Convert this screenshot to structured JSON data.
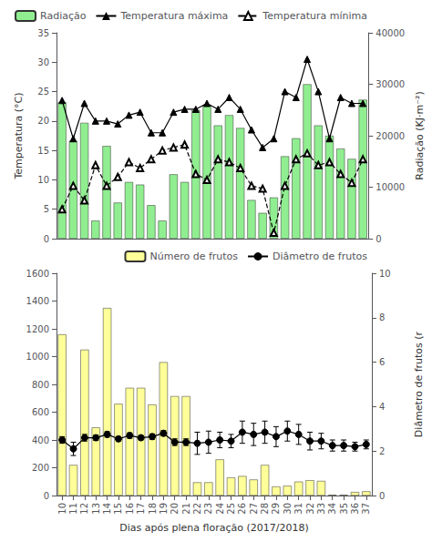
{
  "chart_data": [
    {
      "type": "bar",
      "categories": [
        "10",
        "11",
        "12",
        "13",
        "14",
        "15",
        "16",
        "17",
        "18",
        "19",
        "20",
        "21",
        "22",
        "23",
        "24",
        "25",
        "26",
        "27",
        "28",
        "29",
        "30",
        "31",
        "32",
        "33",
        "34",
        "35",
        "36",
        "37"
      ],
      "ylabel": "Temperatura (°C)",
      "y2label": "Radiação (KJ·m⁻²)",
      "ylim": [
        0,
        35
      ],
      "yticks": [
        0,
        5,
        10,
        15,
        20,
        25,
        30,
        35
      ],
      "y2lim": [
        0,
        40000
      ],
      "y2ticks": [
        0,
        10000,
        20000,
        30000,
        40000
      ],
      "tick_labels": "y",
      "grid": false,
      "legend": "upper right",
      "series": [
        {
          "name": "Radiação",
          "type": "bar",
          "color": "#90ee90",
          "axis": "y2",
          "values": [
            26500,
            19000,
            22500,
            3500,
            18000,
            7000,
            11000,
            10500,
            6500,
            3500,
            12500,
            11000,
            25000,
            26000,
            22000,
            24000,
            21500,
            7500,
            5000,
            8000,
            16000,
            19500,
            30000,
            22000,
            20000,
            17500,
            15500,
            27000
          ]
        },
        {
          "name": "Temperatura máxima",
          "type": "line",
          "color": "#000000",
          "marker": "triangle",
          "line_style": "solid",
          "values": [
            23.5,
            17.0,
            23.0,
            20.0,
            20.0,
            19.5,
            21.0,
            21.5,
            18.0,
            18.0,
            21.5,
            22.0,
            22.0,
            23.0,
            22.0,
            24.0,
            22.0,
            18.5,
            15.5,
            17.0,
            25.0,
            24.0,
            30.5,
            25.0,
            17.0,
            24.0,
            23.0,
            23.0
          ]
        },
        {
          "name": "Temperatura mínima",
          "type": "line",
          "color": "#000000",
          "marker": "open_triangle",
          "line_style": "dashed",
          "values": [
            5.0,
            9.0,
            6.5,
            12.5,
            9.0,
            10.5,
            13.0,
            12.0,
            13.5,
            15.0,
            15.5,
            16.0,
            11.0,
            10.0,
            13.5,
            13.0,
            12.0,
            9.0,
            8.5,
            1.0,
            9.0,
            13.5,
            14.5,
            12.5,
            13.0,
            11.0,
            9.5,
            13.5
          ]
        }
      ]
    },
    {
      "type": "bar",
      "categories": [
        "10",
        "11",
        "12",
        "13",
        "14",
        "15",
        "16",
        "17",
        "18",
        "19",
        "20",
        "21",
        "22",
        "23",
        "24",
        "25",
        "26",
        "27",
        "28",
        "29",
        "30",
        "31",
        "32",
        "33",
        "34",
        "35",
        "36",
        "37"
      ],
      "xlabel": "Dias após plena floração (2017/2018)",
      "y2label": "Diâmetro de frutos (r",
      "ylim": [
        0,
        1600
      ],
      "yticks": [
        0,
        200,
        400,
        600,
        800,
        1000,
        1200,
        1400,
        1600
      ],
      "y2lim": [
        0,
        10
      ],
      "y2ticks": [
        0,
        2,
        4,
        6,
        8,
        10
      ],
      "grid": false,
      "legend": "upper right",
      "series": [
        {
          "name": "Número de frutos",
          "type": "bar",
          "color": "#ffff99",
          "values": [
            1160,
            220,
            1050,
            490,
            1350,
            660,
            775,
            775,
            655,
            960,
            715,
            715,
            95,
            95,
            260,
            130,
            140,
            115,
            220,
            65,
            70,
            100,
            110,
            105,
            5,
            5,
            25,
            30
          ]
        },
        {
          "name": "Diâmetro de frutos",
          "type": "line",
          "color": "#000000",
          "marker": "circle",
          "line_style": "solid",
          "axis": "y2",
          "values": [
            2.5,
            2.1,
            2.6,
            2.6,
            2.75,
            2.55,
            2.7,
            2.6,
            2.65,
            2.8,
            2.4,
            2.4,
            2.35,
            2.4,
            2.5,
            2.45,
            2.85,
            2.75,
            2.85,
            2.65,
            2.9,
            2.75,
            2.45,
            2.45,
            2.25,
            2.25,
            2.2,
            2.3
          ],
          "errors": [
            0.15,
            0.3,
            0.15,
            0.12,
            0.12,
            0.1,
            0.12,
            0.1,
            0.12,
            0.12,
            0.15,
            0.15,
            0.5,
            0.5,
            0.35,
            0.3,
            0.5,
            0.5,
            0.5,
            0.45,
            0.45,
            0.45,
            0.4,
            0.35,
            0.25,
            0.25,
            0.2,
            0.2
          ]
        }
      ]
    }
  ]
}
